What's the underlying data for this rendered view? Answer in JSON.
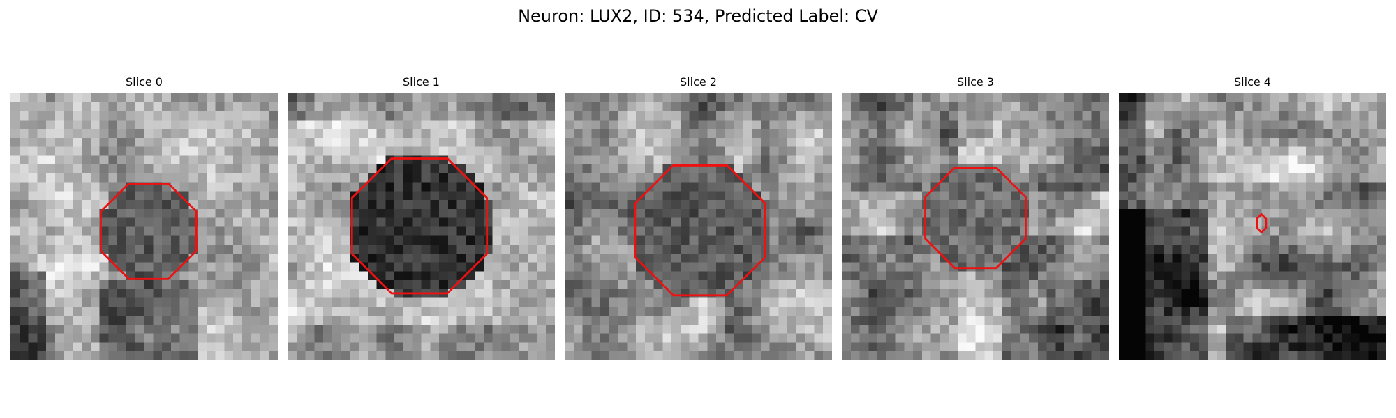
{
  "figure": {
    "title": "Neuron: LUX2, ID: 534, Predicted Label: CV",
    "grid_size": 30,
    "contour_color": "#ee1111"
  },
  "panels": [
    {
      "label": "Slice 0",
      "contour_center": [
        15.5,
        15.5
      ],
      "contour_radius": 5.8,
      "pattern": "ring-dark-center-light-mid"
    },
    {
      "label": "Slice 1",
      "contour_center": [
        14.8,
        14.9
      ],
      "contour_radius": 8.2,
      "pattern": "dark-center-bright-surround"
    },
    {
      "label": "Slice 2",
      "contour_center": [
        15.2,
        15.4
      ],
      "contour_radius": 7.9,
      "pattern": "dark-center-medium-surround"
    },
    {
      "label": "Slice 3",
      "contour_center": [
        15.0,
        14.0
      ],
      "contour_radius": 6.1,
      "pattern": "gray-center-bright-cross"
    },
    {
      "label": "Slice 4",
      "contour_center": [
        16.0,
        14.6
      ],
      "contour_radius": 0.6,
      "pattern": "dark-lower-left-bright-top"
    }
  ]
}
